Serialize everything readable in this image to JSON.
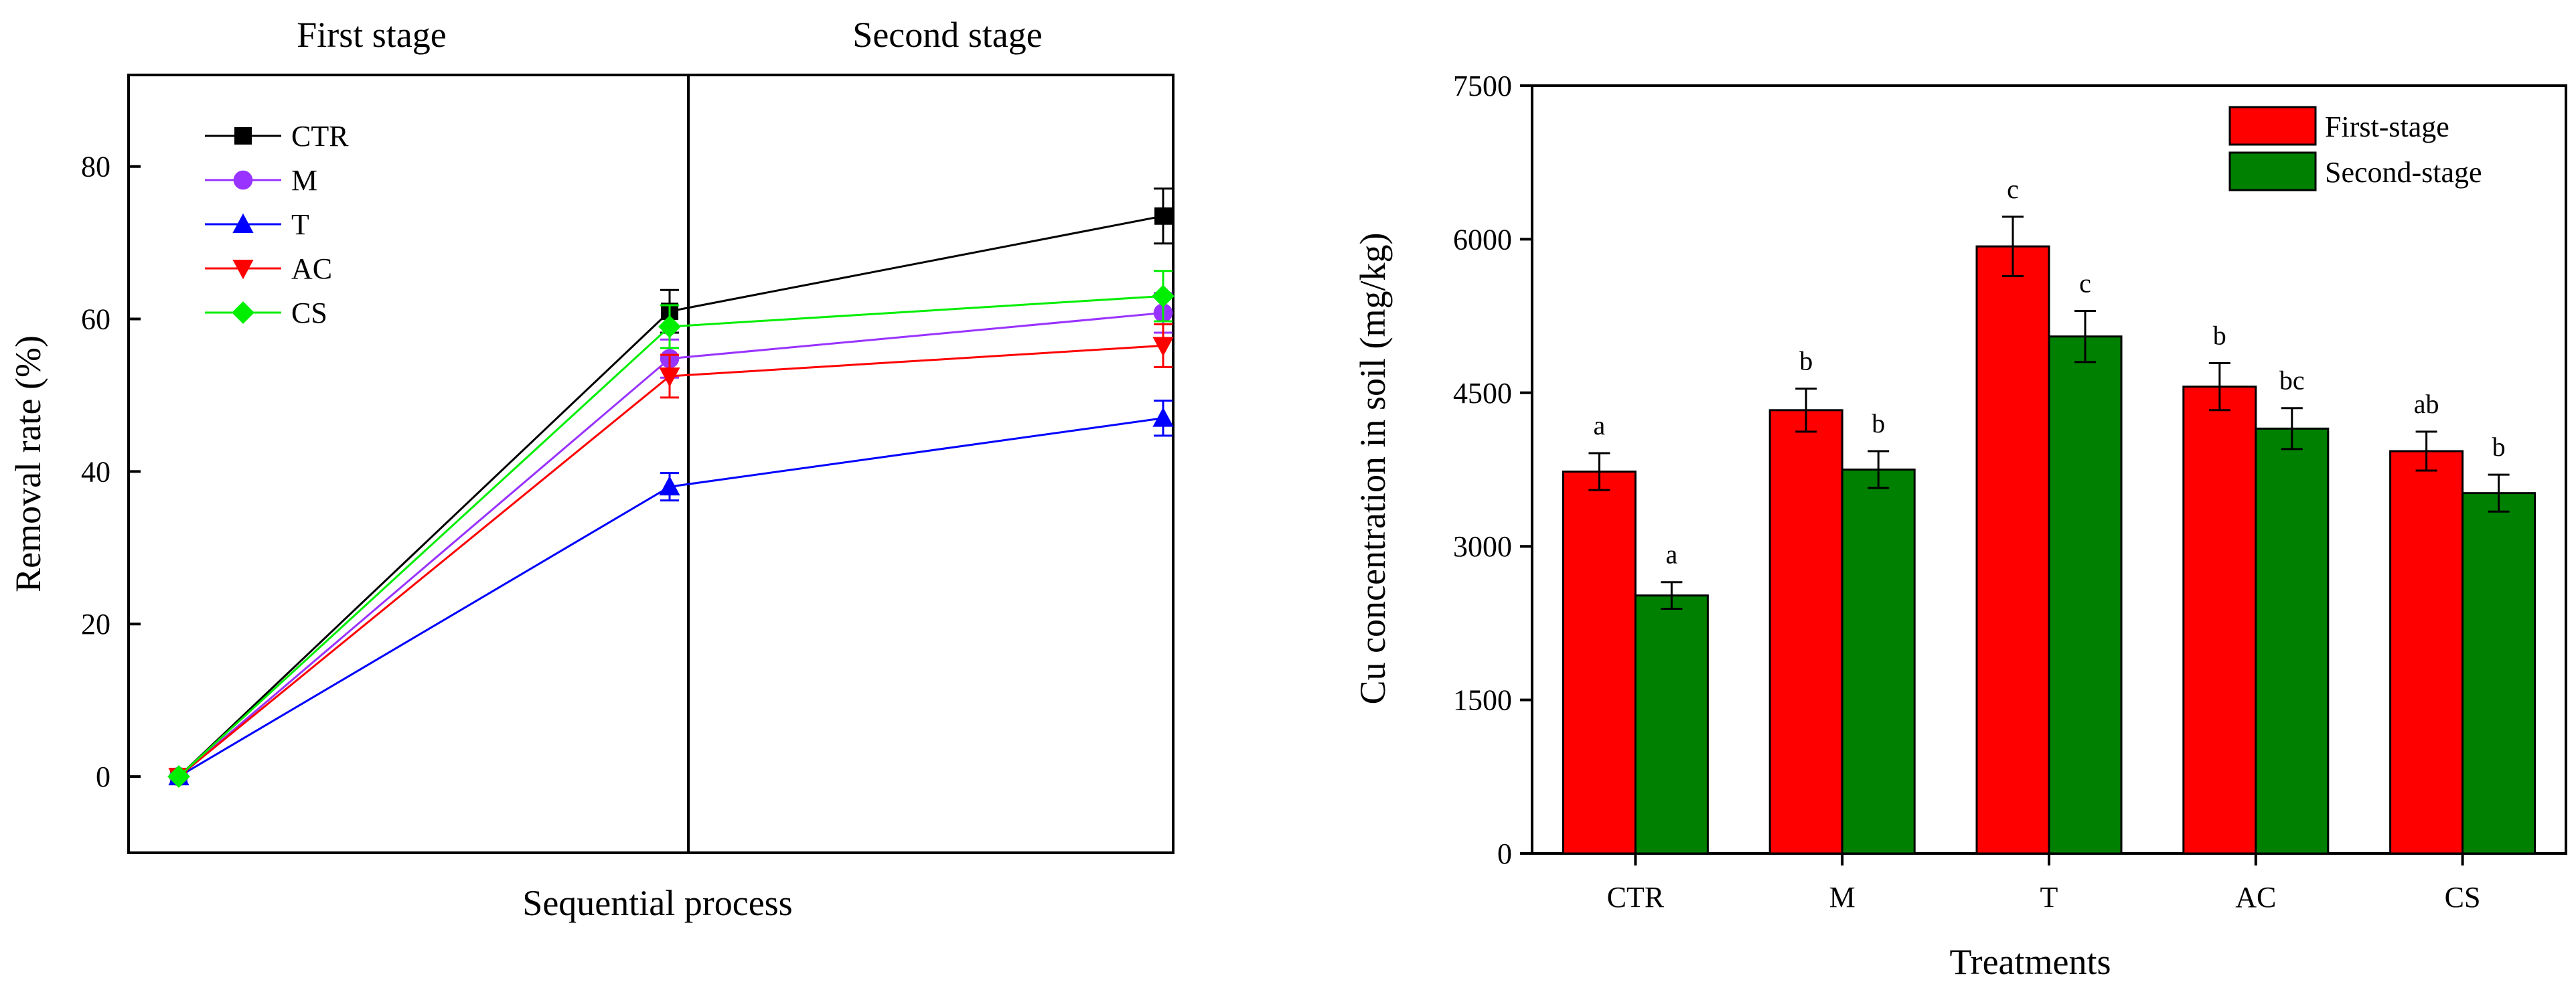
{
  "chart_data": [
    {
      "type": "line",
      "title": "",
      "xlabel": "Sequential process",
      "ylabel": "Removal rate (%)",
      "ylim": [
        -10,
        92
      ],
      "yticks": [
        0,
        20,
        40,
        60,
        80
      ],
      "x": [
        0,
        1,
        2
      ],
      "stage_labels": [
        "First stage",
        "Second stage"
      ],
      "legend_position": "top-left",
      "series": [
        {
          "name": "CTR",
          "color": "#000000",
          "marker": "square",
          "values": [
            0,
            61.0,
            73.5
          ],
          "errors": [
            0,
            2.8,
            3.6
          ]
        },
        {
          "name": "M",
          "color": "#9933ff",
          "marker": "circle",
          "values": [
            0,
            54.8,
            60.8
          ],
          "errors": [
            0,
            2.5,
            2.6
          ]
        },
        {
          "name": "T",
          "color": "#0000ff",
          "marker": "triangle-up",
          "values": [
            0,
            38.0,
            47.0
          ],
          "errors": [
            0,
            1.8,
            2.3
          ]
        },
        {
          "name": "AC",
          "color": "#ff0000",
          "marker": "triangle-down",
          "values": [
            0,
            52.5,
            56.5
          ],
          "errors": [
            0,
            2.8,
            2.8
          ]
        },
        {
          "name": "CS",
          "color": "#00ee00",
          "marker": "diamond",
          "values": [
            0,
            59.0,
            63.0
          ],
          "errors": [
            0,
            2.8,
            3.3
          ]
        }
      ]
    },
    {
      "type": "bar",
      "title": "",
      "xlabel": "Treatments",
      "ylabel": "Cu concentration in soil (mg/kg)",
      "ylim": [
        0,
        7500
      ],
      "yticks": [
        0,
        1500,
        3000,
        4500,
        6000,
        7500
      ],
      "categories": [
        "CTR",
        "M",
        "T",
        "AC",
        "CS"
      ],
      "legend_position": "top-right",
      "series": [
        {
          "name": "First-stage",
          "color": "#ff0000",
          "values": [
            3730,
            4330,
            5930,
            4560,
            3930
          ],
          "errors": [
            180,
            210,
            290,
            230,
            190
          ],
          "labels": [
            "a",
            "b",
            "c",
            "b",
            "ab"
          ]
        },
        {
          "name": "Second-stage",
          "color": "#008000",
          "values": [
            2520,
            3750,
            5050,
            4150,
            3520
          ],
          "errors": [
            130,
            180,
            250,
            200,
            180
          ],
          "labels": [
            "a",
            "b",
            "c",
            "bc",
            "b"
          ]
        }
      ]
    }
  ]
}
